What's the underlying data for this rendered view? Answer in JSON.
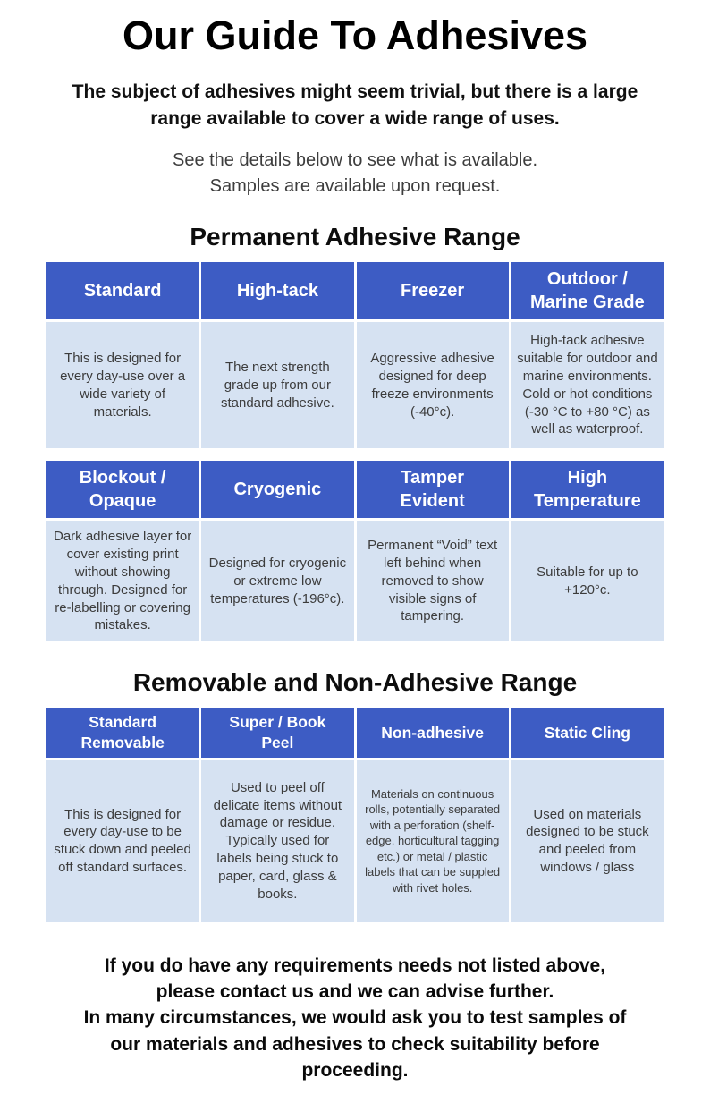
{
  "page": {
    "title": "Our Guide To Adhesives",
    "intro_bold_lines": [
      "The subject of adhesives might seem trivial, but there is a large",
      "range available to cover a wide range of uses."
    ],
    "availability_lines": [
      "See the details below to see what is available.",
      "Samples are available upon request."
    ],
    "footer_lines": [
      "If you do have any requirements needs not listed above,",
      "please contact us and we can advise further.",
      "In many circumstances, we would ask you to test samples of",
      "our materials and adhesives to check suitability before",
      "proceeding."
    ]
  },
  "colors": {
    "header_blue": "#3d5cc4",
    "cell_blue": "#d6e2f2",
    "body_text": "#3c3c3c"
  },
  "sections": [
    {
      "heading": "Permanent Adhesive Range",
      "rows": [
        {
          "cells": [
            {
              "header": "Standard",
              "body": "This is designed for every day-use over a wide variety of materials."
            },
            {
              "header": "High-tack",
              "body": "The next strength grade up from our standard adhesive."
            },
            {
              "header": "Freezer",
              "body": "Aggressive adhesive designed for deep freeze environments (-40°c)."
            },
            {
              "header": "Outdoor / Marine Grade",
              "body": "High-tack adhesive suitable for outdoor and marine environments. Cold or hot conditions (-30 °C to +80 °C) as well as waterproof."
            }
          ]
        },
        {
          "cells": [
            {
              "header": "Blockout / Opaque",
              "body": "Dark adhesive layer for cover existing print without showing through. Designed for re-labelling or covering mistakes."
            },
            {
              "header": "Cryogenic",
              "body": "Designed for cryogenic or extreme low temperatures (-196°c)."
            },
            {
              "header": "Tamper Evident",
              "body": "Permanent “Void” text left behind when removed to show visible signs of tampering."
            },
            {
              "header": "High Temperature",
              "body": "Suitable for up to +120°c."
            }
          ]
        }
      ]
    },
    {
      "heading": "Removable and Non-Adhesive Range",
      "rows": [
        {
          "cells": [
            {
              "header": "Standard Removable",
              "body": "This is designed for every day-use to be stuck down and peeled off standard surfaces."
            },
            {
              "header": "Super / Book Peel",
              "body": "Used to peel off delicate items without damage or residue. Typically used for labels being stuck to paper, card, glass & books."
            },
            {
              "header": "Non-adhesive",
              "body": "Materials on continuous rolls, potentially separated with a perforation (shelf-edge, horticultural tagging etc.) or metal / plastic labels that can be suppled with rivet holes."
            },
            {
              "header": "Static Cling",
              "body": "Used on materials designed to be stuck and peeled from windows / glass"
            }
          ]
        }
      ]
    }
  ]
}
